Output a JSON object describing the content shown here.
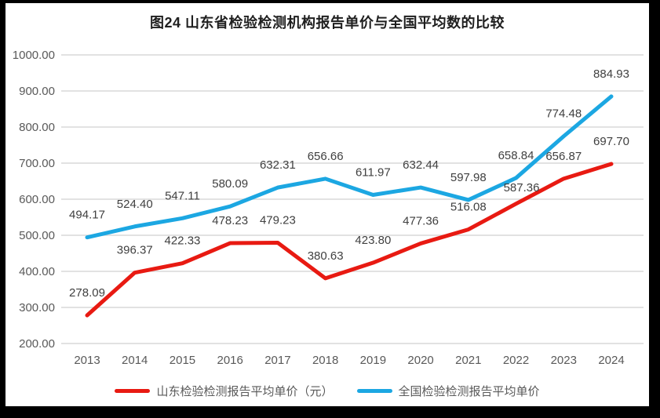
{
  "title": "图24  山东省检验检测机构报告单价与全国平均数的比较",
  "colors": {
    "shandong_red": "#e81a12",
    "national_blue": "#1ca7e2",
    "grid": "#d9d9d9",
    "axis_text": "#595959",
    "data_label_text": "#404040",
    "title_text": "#1f1f1f",
    "frame": "#000000",
    "background": "#ffffff"
  },
  "legend": [
    {
      "label": "山东检验检测报告平均单价（元）",
      "color": "#e81a12"
    },
    {
      "label": "全国检验检测报告平均单价",
      "color": "#1ca7e2"
    }
  ],
  "chart_data": {
    "type": "line",
    "title": "图24  山东省检验检测机构报告单价与全国平均数的比较",
    "categories": [
      "2013",
      "2014",
      "2015",
      "2016",
      "2017",
      "2018",
      "2019",
      "2020",
      "2021",
      "2022",
      "2023",
      "2024"
    ],
    "series": [
      {
        "name": "山东检验检测报告平均单价（元）",
        "color": "#e81a12",
        "values": [
          278.09,
          396.37,
          422.33,
          478.23,
          479.23,
          380.63,
          423.8,
          477.36,
          516.08,
          587.36,
          656.87,
          697.7
        ]
      },
      {
        "name": "全国检验检测报告平均单价",
        "color": "#1ca7e2",
        "values": [
          494.17,
          524.4,
          547.11,
          580.09,
          632.31,
          656.66,
          611.97,
          632.44,
          597.98,
          658.84,
          774.48,
          884.93
        ]
      }
    ],
    "xlabel": "",
    "ylabel": "",
    "ylim": [
      200,
      1000
    ],
    "ytick_step": 100,
    "ytick_decimals": 2,
    "value_label_decimals": 2,
    "grid": true,
    "legend_position": "bottom",
    "label_adjust": [
      {
        "series": 0,
        "point": 9,
        "dx": 7,
        "dy": 8
      }
    ]
  }
}
